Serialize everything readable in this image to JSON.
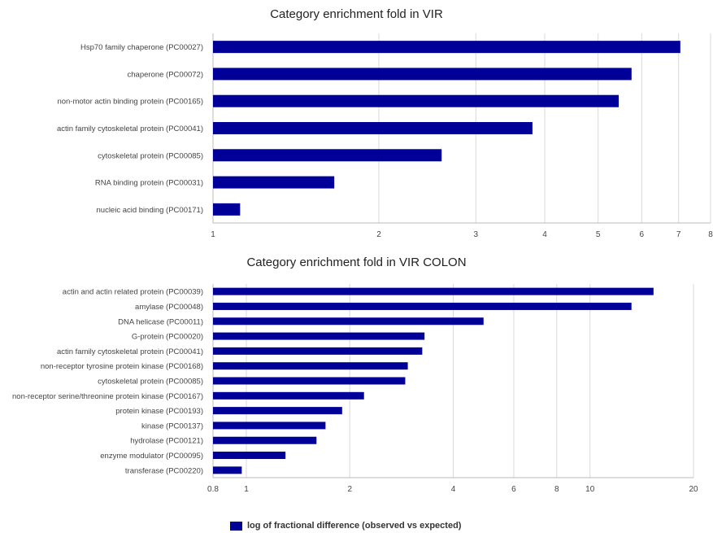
{
  "colors": {
    "bar": "#000099",
    "grid": "#d9d9d9",
    "axis": "#bbbbbb",
    "text": "#444444"
  },
  "legend": {
    "label": "log of fractional difference (observed vs expected)"
  },
  "chart_data": [
    {
      "type": "bar",
      "orientation": "horizontal",
      "title": "Category enrichment fold in VIR",
      "xscale": "log",
      "xlim": [
        1,
        8
      ],
      "xticks": [
        1,
        2,
        3,
        4,
        5,
        6,
        7,
        8
      ],
      "grid": true,
      "legend_position": "bottom",
      "series": [
        {
          "name": "log of fractional difference (observed vs expected)"
        }
      ],
      "categories": [
        "Hsp70 family chaperone (PC00027)",
        "chaperone (PC00072)",
        "non-motor actin binding protein (PC00165)",
        "actin family cytoskeletal protein (PC00041)",
        "cytoskeletal protein (PC00085)",
        "RNA binding protein (PC00031)",
        "nucleic acid binding (PC00171)"
      ],
      "values": [
        7.05,
        5.75,
        5.45,
        3.8,
        2.6,
        1.66,
        1.12
      ]
    },
    {
      "type": "bar",
      "orientation": "horizontal",
      "title": "Category enrichment fold in VIR COLON",
      "xscale": "log",
      "xlim": [
        0.8,
        20
      ],
      "xticks": [
        0.8,
        1,
        2,
        4,
        6,
        8,
        10,
        20
      ],
      "grid": true,
      "legend_position": "bottom",
      "series": [
        {
          "name": "log of fractional difference (observed vs expected)"
        }
      ],
      "categories": [
        "actin and actin related protein (PC00039)",
        "amylase (PC00048)",
        "DNA helicase (PC00011)",
        "G-protein (PC00020)",
        "actin family cytoskeletal protein (PC00041)",
        "non-receptor tyrosine protein kinase (PC00168)",
        "cytoskeletal protein (PC00085)",
        "non-receptor serine/threonine protein kinase (PC00167)",
        "protein kinase (PC00193)",
        "kinase (PC00137)",
        "hydrolase (PC00121)",
        "enzyme modulator (PC00095)",
        "transferase (PC00220)"
      ],
      "values": [
        15.3,
        13.2,
        4.9,
        3.3,
        3.25,
        2.95,
        2.9,
        2.2,
        1.9,
        1.7,
        1.6,
        1.3,
        0.97
      ]
    }
  ]
}
